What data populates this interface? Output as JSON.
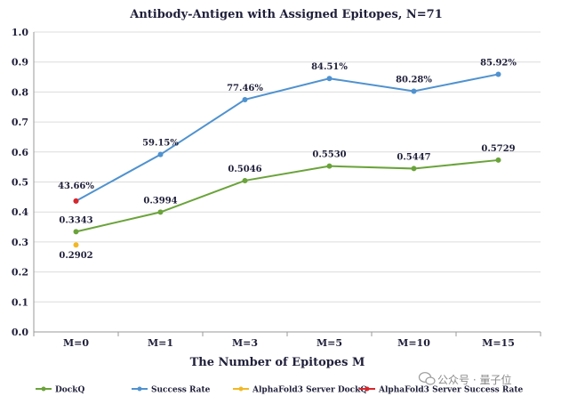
{
  "chart_data": {
    "type": "line",
    "title": "Antibody-Antigen with Assigned Epitopes, N=71",
    "xlabel": "The Number of Epitopes M",
    "ylabel": "",
    "categories": [
      "M=0",
      "M=1",
      "M=3",
      "M=5",
      "M=10",
      "M=15"
    ],
    "ylim": [
      0.0,
      1.0
    ],
    "yticks": [
      "0.0",
      "0.1",
      "0.2",
      "0.3",
      "0.4",
      "0.5",
      "0.6",
      "0.7",
      "0.8",
      "0.9",
      "1.0"
    ],
    "grid": "horizontal",
    "legend_position": "bottom",
    "series": [
      {
        "name": "DockQ",
        "color": "#6aa33a",
        "x": [
          "M=0",
          "M=1",
          "M=3",
          "M=5",
          "M=10",
          "M=15"
        ],
        "values": [
          0.3343,
          0.3994,
          0.5046,
          0.553,
          0.5447,
          0.5729
        ],
        "labels": [
          "0.3343",
          "0.3994",
          "0.5046",
          "0.5530",
          "0.5447",
          "0.5729"
        ]
      },
      {
        "name": "Success Rate",
        "color": "#4f92cf",
        "x": [
          "M=0",
          "M=1",
          "M=3",
          "M=5",
          "M=10",
          "M=15"
        ],
        "values": [
          0.4366,
          0.5915,
          0.7746,
          0.8451,
          0.8028,
          0.8592
        ],
        "labels": [
          "43.66%",
          "59.15%",
          "77.46%",
          "84.51%",
          "80.28%",
          "85.92%"
        ]
      },
      {
        "name": "AlphaFold3 Server DockQ",
        "color": "#f2b824",
        "x": [
          "M=0"
        ],
        "values": [
          0.2902
        ],
        "labels": [
          "0.2902"
        ]
      },
      {
        "name": "AlphaFold3 Server Success Rate",
        "color": "#d9262a",
        "x": [
          "M=0"
        ],
        "values": [
          0.4366
        ],
        "labels": [
          ""
        ]
      }
    ]
  },
  "watermark": "公众号 · 量子位"
}
